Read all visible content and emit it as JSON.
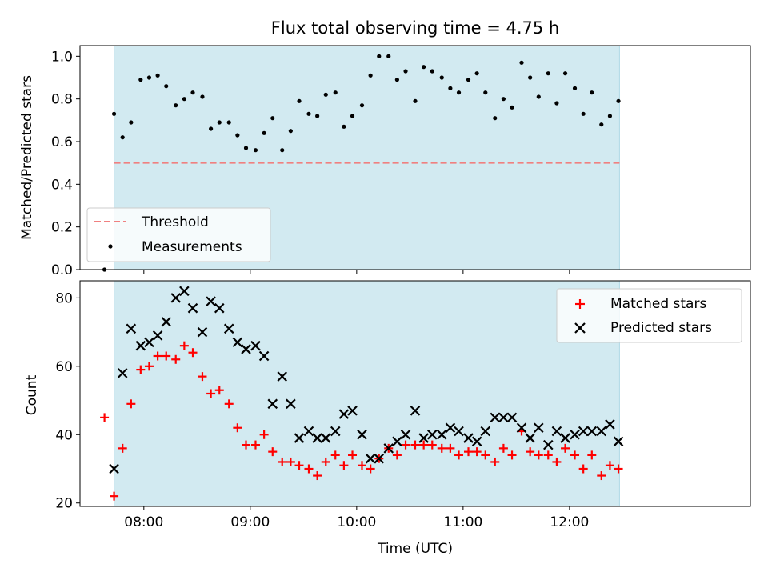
{
  "chart_data": {
    "type": "scatter",
    "title": "Flux total observing time = 4.75 h",
    "xlabel": "Time (UTC)",
    "x_ticks": [
      "08:00",
      "09:00",
      "10:00",
      "11:00",
      "12:00"
    ],
    "x_range_hours": [
      7.4,
      13.7
    ],
    "observing_window_hours": [
      7.72,
      12.47
    ],
    "shade_color": "#add8e6",
    "panels": [
      {
        "id": "ratio",
        "ylabel": "Matched/Predicted stars",
        "ylim": [
          0.0,
          1.05
        ],
        "y_ticks": [
          "0.0",
          "0.2",
          "0.4",
          "0.6",
          "0.8",
          "1.0"
        ],
        "legend_position": "lower-left",
        "series": [
          {
            "name": "Threshold",
            "style": "dashed-line",
            "color": "#f08080",
            "x": [
              7.72,
              12.47
            ],
            "y": [
              0.5,
              0.5
            ]
          },
          {
            "name": "Measurements",
            "style": "dot",
            "color": "#000000",
            "x": [
              7.63,
              7.72,
              7.8,
              7.88,
              7.97,
              8.05,
              8.13,
              8.21,
              8.3,
              8.38,
              8.46,
              8.55,
              8.63,
              8.71,
              8.8,
              8.88,
              8.96,
              9.05,
              9.13,
              9.21,
              9.3,
              9.38,
              9.46,
              9.55,
              9.63,
              9.71,
              9.8,
              9.88,
              9.96,
              10.05,
              10.13,
              10.21,
              10.3,
              10.38,
              10.46,
              10.55,
              10.63,
              10.71,
              10.8,
              10.88,
              10.96,
              11.05,
              11.13,
              11.21,
              11.3,
              11.38,
              11.46,
              11.55,
              11.63,
              11.71,
              11.8,
              11.88,
              11.96,
              12.05,
              12.13,
              12.21,
              12.3,
              12.38,
              12.46
            ],
            "y": [
              0.0,
              0.73,
              0.62,
              0.69,
              0.89,
              0.9,
              0.91,
              0.86,
              0.77,
              0.8,
              0.83,
              0.81,
              0.66,
              0.69,
              0.69,
              0.63,
              0.57,
              0.56,
              0.64,
              0.71,
              0.56,
              0.65,
              0.79,
              0.73,
              0.72,
              0.82,
              0.83,
              0.67,
              0.72,
              0.77,
              0.91,
              1.0,
              1.0,
              0.89,
              0.93,
              0.79,
              0.95,
              0.93,
              0.9,
              0.85,
              0.83,
              0.89,
              0.92,
              0.83,
              0.71,
              0.8,
              0.76,
              0.97,
              0.9,
              0.81,
              0.92,
              0.78,
              0.92,
              0.85,
              0.73,
              0.83,
              0.68,
              0.72,
              0.79
            ]
          }
        ]
      },
      {
        "id": "count",
        "ylabel": "Count",
        "ylim": [
          19,
          85
        ],
        "y_ticks": [
          "20",
          "40",
          "60",
          "80"
        ],
        "legend_position": "upper-right",
        "series": [
          {
            "name": "Matched stars",
            "style": "plus",
            "color": "#ff0000",
            "x": [
              7.63,
              7.72,
              7.8,
              7.88,
              7.97,
              8.05,
              8.13,
              8.21,
              8.3,
              8.38,
              8.46,
              8.55,
              8.63,
              8.71,
              8.8,
              8.88,
              8.96,
              9.05,
              9.13,
              9.21,
              9.3,
              9.38,
              9.46,
              9.55,
              9.63,
              9.71,
              9.8,
              9.88,
              9.96,
              10.05,
              10.13,
              10.21,
              10.3,
              10.38,
              10.46,
              10.55,
              10.63,
              10.71,
              10.8,
              10.88,
              10.96,
              11.05,
              11.13,
              11.21,
              11.3,
              11.38,
              11.46,
              11.55,
              11.63,
              11.71,
              11.8,
              11.88,
              11.96,
              12.05,
              12.13,
              12.21,
              12.3,
              12.38,
              12.46
            ],
            "y": [
              45,
              22,
              36,
              49,
              59,
              60,
              63,
              63,
              62,
              66,
              64,
              57,
              52,
              53,
              49,
              42,
              37,
              37,
              40,
              35,
              32,
              32,
              31,
              30,
              28,
              32,
              34,
              31,
              34,
              31,
              30,
              33,
              36,
              34,
              37,
              37,
              37,
              37,
              36,
              36,
              34,
              35,
              35,
              34,
              32,
              36,
              34,
              41,
              35,
              34,
              34,
              32,
              36,
              34,
              30,
              34,
              28,
              31,
              30
            ]
          },
          {
            "name": "Predicted stars",
            "style": "x",
            "color": "#000000",
            "x": [
              7.72,
              7.8,
              7.88,
              7.97,
              8.05,
              8.13,
              8.21,
              8.3,
              8.38,
              8.46,
              8.55,
              8.63,
              8.71,
              8.8,
              8.88,
              8.96,
              9.05,
              9.13,
              9.21,
              9.3,
              9.38,
              9.46,
              9.55,
              9.63,
              9.71,
              9.8,
              9.88,
              9.96,
              10.05,
              10.13,
              10.21,
              10.3,
              10.38,
              10.46,
              10.55,
              10.63,
              10.71,
              10.8,
              10.88,
              10.96,
              11.05,
              11.13,
              11.21,
              11.3,
              11.38,
              11.46,
              11.55,
              11.63,
              11.71,
              11.8,
              11.88,
              11.96,
              12.05,
              12.13,
              12.21,
              12.3,
              12.38,
              12.46
            ],
            "y": [
              30,
              58,
              71,
              66,
              67,
              69,
              73,
              80,
              82,
              77,
              70,
              79,
              77,
              71,
              67,
              65,
              66,
              63,
              49,
              57,
              49,
              39,
              41,
              39,
              39,
              41,
              46,
              47,
              40,
              33,
              33,
              36,
              38,
              40,
              47,
              39,
              40,
              40,
              42,
              41,
              39,
              38,
              41,
              45,
              45,
              45,
              42,
              39,
              42,
              37,
              41,
              39,
              40,
              41,
              41,
              41,
              43,
              38
            ]
          }
        ]
      }
    ]
  }
}
